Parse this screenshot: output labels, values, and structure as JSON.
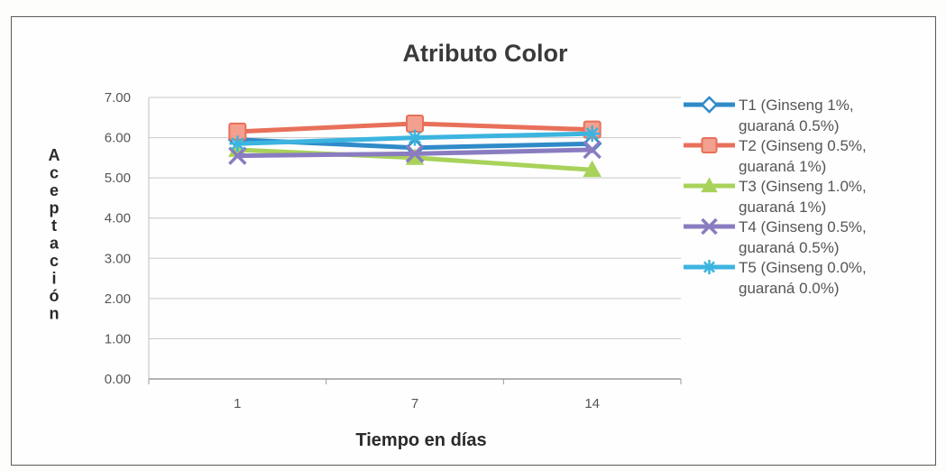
{
  "chart_data": {
    "type": "line",
    "title": "Atributo Color",
    "xlabel": "Tiempo en días",
    "ylabel": "Aceptación",
    "categories": [
      "1",
      "7",
      "14"
    ],
    "ylim": [
      0,
      7
    ],
    "yticks": [
      "0.00",
      "1.00",
      "2.00",
      "3.00",
      "4.00",
      "5.00",
      "6.00",
      "7.00"
    ],
    "grid": true,
    "legend_position": "right",
    "series": [
      {
        "name": "T1 (Ginseng 1%, guaraná 0.5%)",
        "name_lines": [
          "T1 (Ginseng 1%,",
          "guaraná 0.5%)"
        ],
        "values": [
          5.95,
          5.75,
          5.85
        ],
        "color": "#2f8ac8",
        "marker": "diamond"
      },
      {
        "name": "T2 (Ginseng 0.5%, guaraná 1%)",
        "name_lines": [
          "T2 (Ginseng 0.5%,",
          "guaraná 1%)"
        ],
        "values": [
          6.15,
          6.35,
          6.2
        ],
        "color": "#e8705a",
        "marker": "square"
      },
      {
        "name": "T3 (Ginseng 1.0%, guaraná 1%)",
        "name_lines": [
          "T3 (Ginseng 1.0%,",
          "guaraná 1%)"
        ],
        "values": [
          5.7,
          5.5,
          5.2
        ],
        "color": "#a8d25a",
        "marker": "triangle"
      },
      {
        "name": "T4 (Ginseng 0.5%, guaraná 0.5%)",
        "name_lines": [
          "T4 (Ginseng 0.5%,",
          "guaraná 0.5%)"
        ],
        "values": [
          5.55,
          5.6,
          5.7
        ],
        "color": "#8a7cc0",
        "marker": "x"
      },
      {
        "name": "T5 (Ginseng 0.0%, guaraná 0.0%)",
        "name_lines": [
          "T5 (Ginseng 0.0%,",
          "guaraná 0.0%)"
        ],
        "values": [
          5.85,
          6.0,
          6.1
        ],
        "color": "#3cb4e0",
        "marker": "star"
      }
    ]
  }
}
